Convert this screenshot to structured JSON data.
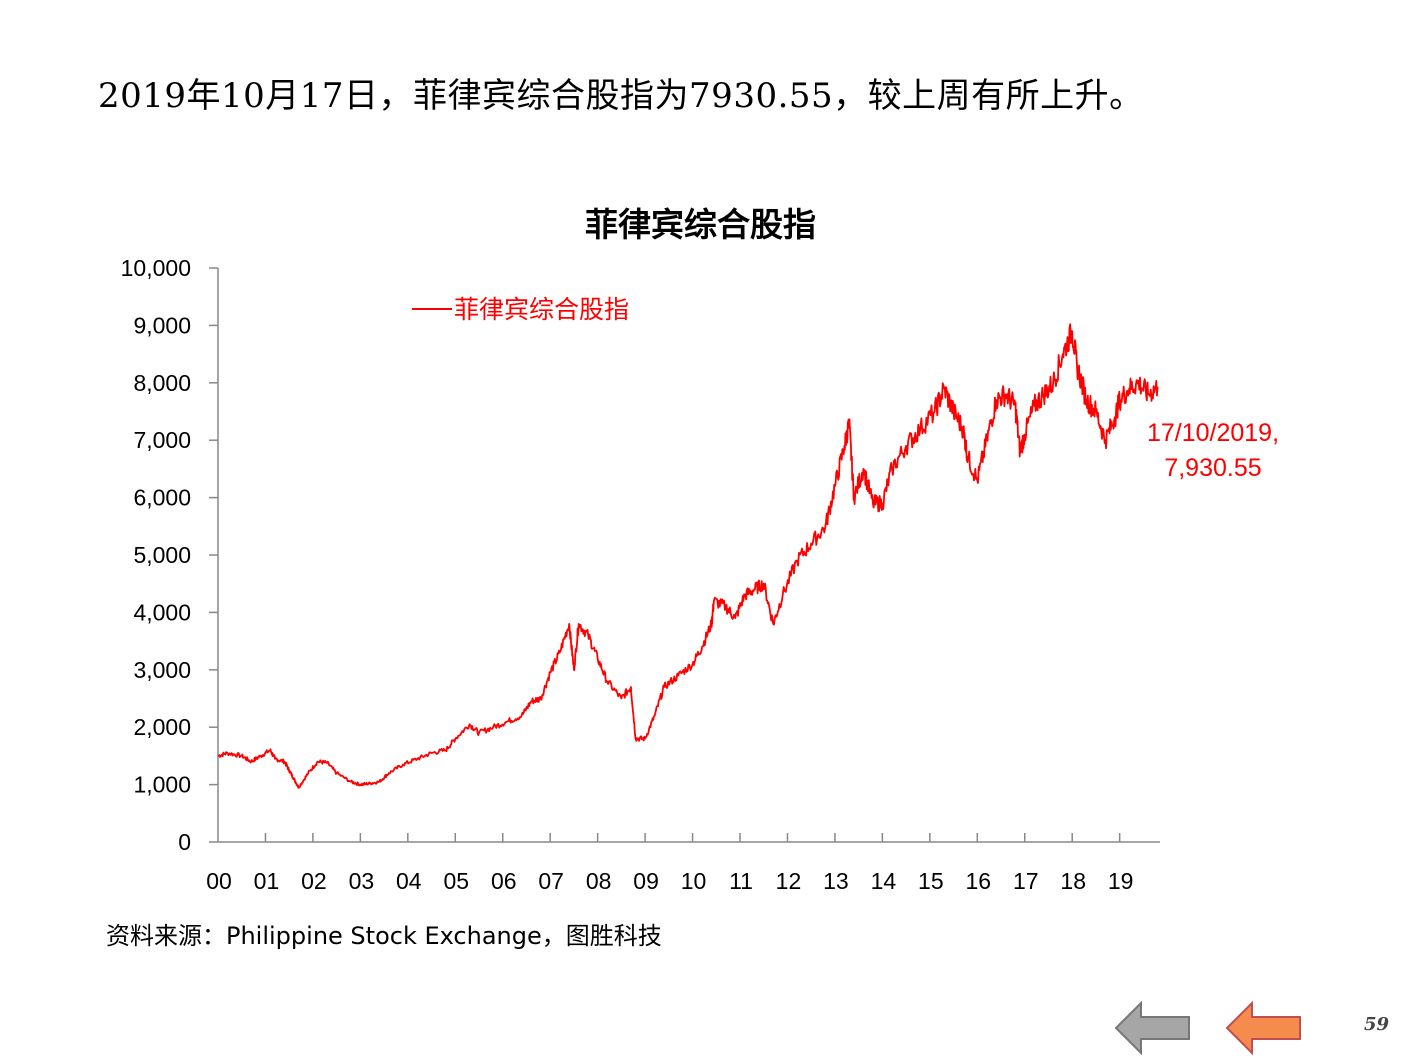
{
  "headline": "2019年10月17日，菲律宾综合股指为7930.55，较上周有所上升。",
  "source_note": "资料来源：Philippine Stock Exchange，图胜科技",
  "page_number": "59",
  "nav": {
    "prev_icon": "left-arrow-icon",
    "next_icon": "left-arrow-icon",
    "prev_color": "#a6a6a6",
    "next_color": "#f58b4c"
  },
  "chart_data": {
    "type": "line",
    "title": "菲律宾综合股指",
    "xlabel": "",
    "ylabel": "",
    "ylim": [
      0,
      10000
    ],
    "yticks": [
      "0",
      "1,000",
      "2,000",
      "3,000",
      "4,000",
      "5,000",
      "6,000",
      "7,000",
      "8,000",
      "9,000",
      "10,000"
    ],
    "xticks": [
      "00",
      "01",
      "02",
      "03",
      "04",
      "05",
      "06",
      "07",
      "08",
      "09",
      "10",
      "11",
      "12",
      "13",
      "14",
      "15",
      "16",
      "17",
      "18",
      "19"
    ],
    "grid": false,
    "legend": {
      "position": "top-left",
      "label": "菲律宾综合股指"
    },
    "line_color": "#ff0000",
    "annotation": {
      "line1": "17/10/2019,",
      "line2": "7,930.55"
    },
    "series": [
      {
        "name": "菲律宾综合股指",
        "points": [
          [
            2000.0,
            1500
          ],
          [
            2000.2,
            1550
          ],
          [
            2000.5,
            1500
          ],
          [
            2000.7,
            1400
          ],
          [
            2000.9,
            1500
          ],
          [
            2001.1,
            1600
          ],
          [
            2001.2,
            1450
          ],
          [
            2001.4,
            1400
          ],
          [
            2001.5,
            1250
          ],
          [
            2001.6,
            1100
          ],
          [
            2001.7,
            950
          ],
          [
            2001.9,
            1200
          ],
          [
            2002.1,
            1400
          ],
          [
            2002.3,
            1380
          ],
          [
            2002.5,
            1200
          ],
          [
            2002.8,
            1050
          ],
          [
            2003.0,
            1000
          ],
          [
            2003.2,
            1020
          ],
          [
            2003.4,
            1050
          ],
          [
            2003.6,
            1200
          ],
          [
            2003.9,
            1350
          ],
          [
            2004.2,
            1450
          ],
          [
            2004.5,
            1550
          ],
          [
            2004.8,
            1600
          ],
          [
            2005.0,
            1800
          ],
          [
            2005.3,
            2050
          ],
          [
            2005.5,
            1900
          ],
          [
            2005.8,
            2000
          ],
          [
            2006.1,
            2100
          ],
          [
            2006.4,
            2200
          ],
          [
            2006.6,
            2450
          ],
          [
            2006.8,
            2500
          ],
          [
            2007.0,
            2950
          ],
          [
            2007.2,
            3300
          ],
          [
            2007.4,
            3800
          ],
          [
            2007.5,
            3000
          ],
          [
            2007.6,
            3800
          ],
          [
            2007.8,
            3600
          ],
          [
            2008.0,
            3200
          ],
          [
            2008.2,
            2800
          ],
          [
            2008.5,
            2500
          ],
          [
            2008.7,
            2700
          ],
          [
            2008.8,
            1800
          ],
          [
            2009.0,
            1800
          ],
          [
            2009.2,
            2200
          ],
          [
            2009.4,
            2700
          ],
          [
            2009.7,
            2900
          ],
          [
            2010.0,
            3100
          ],
          [
            2010.2,
            3400
          ],
          [
            2010.4,
            3800
          ],
          [
            2010.45,
            4200
          ],
          [
            2010.7,
            4100
          ],
          [
            2010.9,
            3900
          ],
          [
            2011.1,
            4300
          ],
          [
            2011.3,
            4400
          ],
          [
            2011.5,
            4500
          ],
          [
            2011.7,
            3800
          ],
          [
            2011.9,
            4300
          ],
          [
            2012.2,
            4900
          ],
          [
            2012.5,
            5200
          ],
          [
            2012.8,
            5500
          ],
          [
            2013.0,
            6200
          ],
          [
            2013.2,
            6900
          ],
          [
            2013.3,
            7300
          ],
          [
            2013.4,
            6000
          ],
          [
            2013.6,
            6500
          ],
          [
            2013.8,
            5900
          ],
          [
            2014.0,
            5900
          ],
          [
            2014.2,
            6500
          ],
          [
            2014.5,
            6900
          ],
          [
            2014.8,
            7200
          ],
          [
            2015.1,
            7500
          ],
          [
            2015.3,
            7900
          ],
          [
            2015.5,
            7500
          ],
          [
            2015.7,
            7200
          ],
          [
            2015.8,
            6700
          ],
          [
            2016.0,
            6300
          ],
          [
            2016.2,
            7000
          ],
          [
            2016.4,
            7700
          ],
          [
            2016.6,
            7800
          ],
          [
            2016.8,
            7600
          ],
          [
            2016.9,
            6800
          ],
          [
            2017.0,
            7100
          ],
          [
            2017.2,
            7600
          ],
          [
            2017.4,
            7800
          ],
          [
            2017.6,
            8000
          ],
          [
            2017.8,
            8500
          ],
          [
            2018.0,
            8900
          ],
          [
            2018.1,
            8300
          ],
          [
            2018.3,
            7700
          ],
          [
            2018.5,
            7500
          ],
          [
            2018.7,
            7000
          ],
          [
            2018.9,
            7400
          ],
          [
            2019.0,
            7700
          ],
          [
            2019.2,
            7900
          ],
          [
            2019.4,
            8000
          ],
          [
            2019.6,
            7800
          ],
          [
            2019.8,
            7930.55
          ]
        ]
      }
    ]
  }
}
